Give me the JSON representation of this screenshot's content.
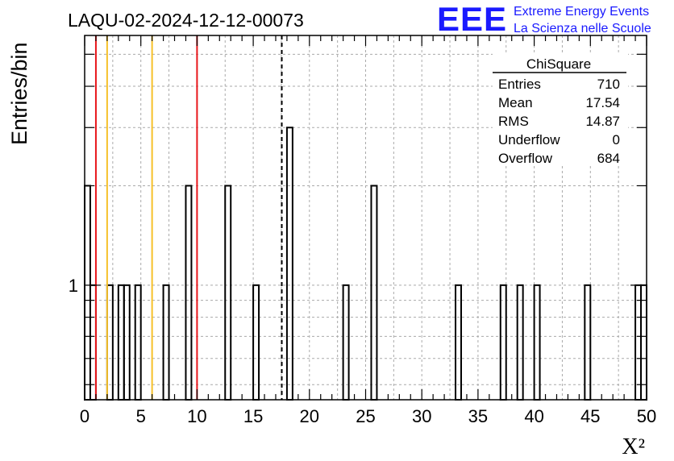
{
  "title": "LAQU-02-2024-12-12-00073",
  "logo": {
    "mark": "EEE",
    "line1": "Extreme Energy Events",
    "line2": "La Scienza nelle Scuole"
  },
  "colors": {
    "frame": "#000000",
    "grid": "#aaaaaa",
    "red_line": "#e8161b",
    "yellow_line": "#f6c12a",
    "logo": "#1a1aff"
  },
  "stats": {
    "title": "ChiSquare",
    "rows": [
      {
        "label": "Entries",
        "value": "710"
      },
      {
        "label": "Mean",
        "value": "17.54"
      },
      {
        "label": "RMS",
        "value": "14.87"
      },
      {
        "label": "Underflow",
        "value": "0"
      },
      {
        "label": "Overflow",
        "value": "684"
      }
    ]
  },
  "chart_data": {
    "type": "bar",
    "title": "LAQU-02-2024-12-12-00073",
    "xlabel": "X²",
    "ylabel": "Entries/bin",
    "xlim": [
      0,
      50
    ],
    "ylog": true,
    "ylim": [
      0.45,
      5.7
    ],
    "grid": true,
    "bin_width": 0.5,
    "x_ticks": [
      "0",
      "5",
      "10",
      "15",
      "20",
      "25",
      "30",
      "35",
      "40",
      "45",
      "50"
    ],
    "y_ticks": [
      "1"
    ],
    "bins": [
      {
        "x": 0.0,
        "count": 2
      },
      {
        "x": 0.5,
        "count": 1
      },
      {
        "x": 2.0,
        "count": 1
      },
      {
        "x": 3.0,
        "count": 1
      },
      {
        "x": 3.5,
        "count": 1
      },
      {
        "x": 4.5,
        "count": 1
      },
      {
        "x": 7.0,
        "count": 1
      },
      {
        "x": 9.0,
        "count": 2
      },
      {
        "x": 12.5,
        "count": 2
      },
      {
        "x": 15.0,
        "count": 1
      },
      {
        "x": 18.0,
        "count": 3
      },
      {
        "x": 23.0,
        "count": 1
      },
      {
        "x": 25.5,
        "count": 2
      },
      {
        "x": 33.0,
        "count": 1
      },
      {
        "x": 37.0,
        "count": 1
      },
      {
        "x": 38.5,
        "count": 1
      },
      {
        "x": 40.0,
        "count": 1
      },
      {
        "x": 44.5,
        "count": 1
      },
      {
        "x": 49.0,
        "count": 1
      },
      {
        "x": 49.5,
        "count": 1
      }
    ],
    "vertical_lines": [
      {
        "x": 1.0,
        "color": "red",
        "style": "solid"
      },
      {
        "x": 2.0,
        "color": "yellow",
        "style": "solid"
      },
      {
        "x": 6.0,
        "color": "yellow",
        "style": "solid"
      },
      {
        "x": 10.0,
        "color": "red",
        "style": "solid"
      },
      {
        "x": 17.54,
        "color": "black",
        "style": "dashed"
      }
    ]
  }
}
